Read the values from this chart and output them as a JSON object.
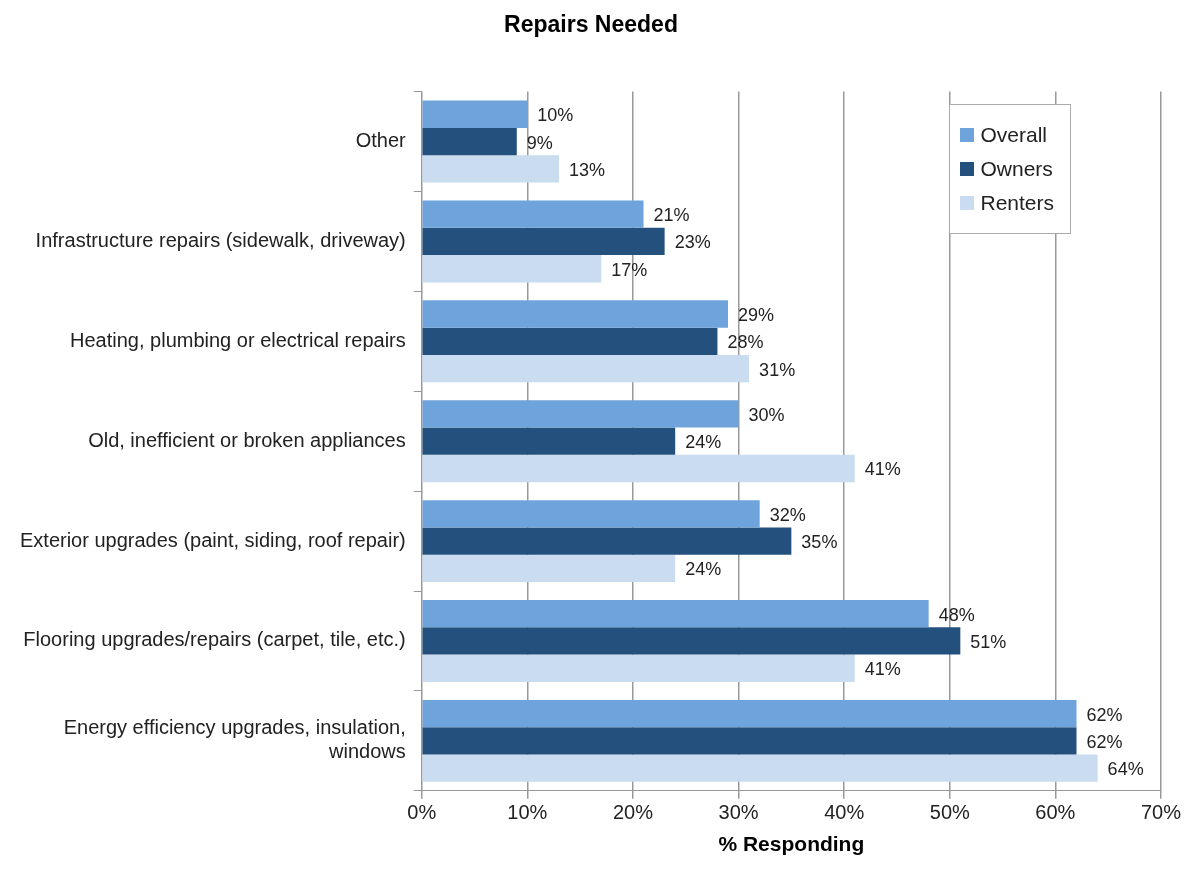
{
  "chart_data": {
    "type": "bar",
    "orientation": "horizontal",
    "title": "Repairs Needed",
    "xlabel": "% Responding",
    "categories": [
      "Other",
      "Infrastructure repairs (sidewalk, driveway)",
      "Heating, plumbing or electrical repairs",
      "Old, inefficient or broken appliances",
      "Exterior upgrades (paint, siding, roof repair)",
      "Flooring upgrades/repairs (carpet, tile, etc.)",
      "Energy efficiency upgrades, insulation, windows"
    ],
    "series": [
      {
        "name": "Overall",
        "color": "#6fa3dc",
        "values": [
          10,
          21,
          29,
          30,
          32,
          48,
          62
        ],
        "value_labels": [
          "10%",
          "21%",
          "29%",
          "30%",
          "32%",
          "48%",
          "62%"
        ]
      },
      {
        "name": "Owners",
        "color": "#24507e",
        "values": [
          9,
          23,
          28,
          24,
          35,
          51,
          62
        ],
        "value_labels": [
          "9%",
          "23%",
          "28%",
          "24%",
          "35%",
          "51%",
          "62%"
        ]
      },
      {
        "name": "Renters",
        "color": "#c9dcf0",
        "values": [
          13,
          17,
          31,
          41,
          24,
          41,
          64
        ],
        "value_labels": [
          "13%",
          "17%",
          "31%",
          "41%",
          "24%",
          "41%",
          "64%"
        ]
      }
    ],
    "xlim": [
      0,
      70
    ],
    "xticks": [
      {
        "value": 0,
        "label": "0%"
      },
      {
        "value": 10,
        "label": "10%"
      },
      {
        "value": 20,
        "label": "20%"
      },
      {
        "value": 30,
        "label": "30%"
      },
      {
        "value": 40,
        "label": "40%"
      },
      {
        "value": 50,
        "label": "50%"
      },
      {
        "value": 60,
        "label": "60%"
      },
      {
        "value": 70,
        "label": "70%"
      }
    ],
    "grid": "x",
    "legend": "top right"
  }
}
